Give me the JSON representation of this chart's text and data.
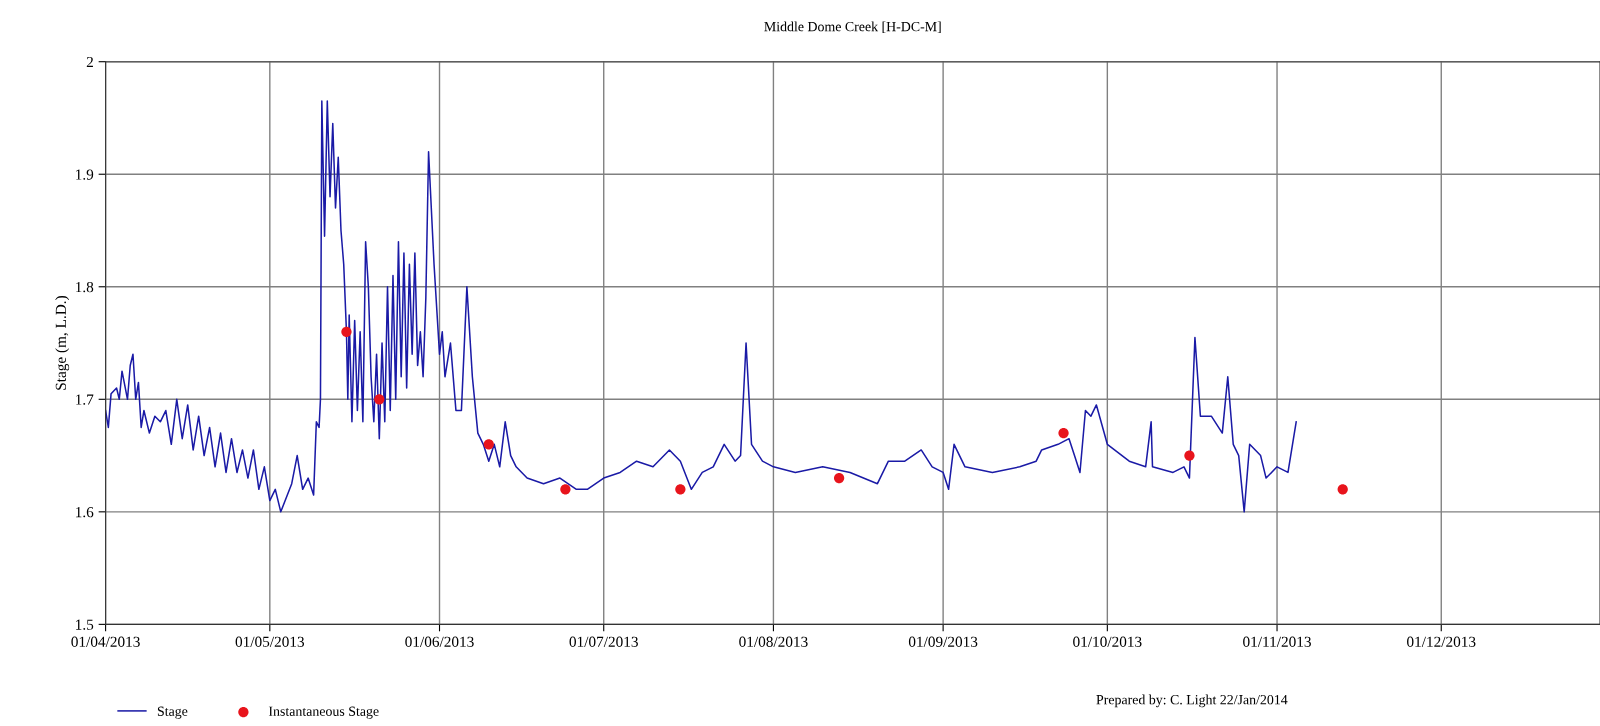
{
  "chart_data": {
    "type": "line",
    "title": "Middle Dome Creek [H-DC-M]",
    "ylabel": "Stage (m, L.D.)",
    "xlim": [
      "2013-04-01",
      "2013-12-30"
    ],
    "xticks": [
      {
        "value": "2013-04-01",
        "label": "01/04/2013"
      },
      {
        "value": "2013-05-01",
        "label": "01/05/2013"
      },
      {
        "value": "2013-06-01",
        "label": "01/06/2013"
      },
      {
        "value": "2013-07-01",
        "label": "01/07/2013"
      },
      {
        "value": "2013-08-01",
        "label": "01/08/2013"
      },
      {
        "value": "2013-09-01",
        "label": "01/09/2013"
      },
      {
        "value": "2013-10-01",
        "label": "01/10/2013"
      },
      {
        "value": "2013-11-01",
        "label": "01/11/2013"
      },
      {
        "value": "2013-12-01",
        "label": "01/12/2013"
      }
    ],
    "ylim": [
      1.5,
      2
    ],
    "yticks": [
      1.5,
      1.6,
      1.7,
      1.8,
      1.9,
      2
    ],
    "grid": true,
    "legend": "bottom left",
    "annotations": [
      "Prepared by: C. Light 22/Jan/2014"
    ],
    "series": [
      {
        "name": "Stage",
        "color": "#1a1aa6",
        "marker": "none",
        "line_style": "solid",
        "x": [
          "2013-04-01",
          "2013-04-01T12:00",
          "2013-04-02",
          "2013-04-03",
          "2013-04-03T12:00",
          "2013-04-04",
          "2013-04-05",
          "2013-04-05T12:00",
          "2013-04-06",
          "2013-04-06T12:00",
          "2013-04-07",
          "2013-04-07T12:00",
          "2013-04-08",
          "2013-04-09",
          "2013-04-10",
          "2013-04-11",
          "2013-04-12",
          "2013-04-13",
          "2013-04-14",
          "2013-04-15",
          "2013-04-16",
          "2013-04-17",
          "2013-04-18",
          "2013-04-19",
          "2013-04-20",
          "2013-04-21",
          "2013-04-22",
          "2013-04-23",
          "2013-04-24",
          "2013-04-25",
          "2013-04-26",
          "2013-04-27",
          "2013-04-28",
          "2013-04-29",
          "2013-04-30",
          "2013-05-01",
          "2013-05-02",
          "2013-05-03",
          "2013-05-05",
          "2013-05-06",
          "2013-05-07",
          "2013-05-08",
          "2013-05-09",
          "2013-05-09T12:00",
          "2013-05-10",
          "2013-05-10T06:00",
          "2013-05-10T12:00",
          "2013-05-11",
          "2013-05-11T12:00",
          "2013-05-12",
          "2013-05-12T12:00",
          "2013-05-13",
          "2013-05-13T12:00",
          "2013-05-14",
          "2013-05-14T12:00",
          "2013-05-15",
          "2013-05-15T06:00",
          "2013-05-15T12:00",
          "2013-05-16",
          "2013-05-16T12:00",
          "2013-05-17",
          "2013-05-17T12:00",
          "2013-05-18",
          "2013-05-18T12:00",
          "2013-05-19",
          "2013-05-19T12:00",
          "2013-05-20",
          "2013-05-20T12:00",
          "2013-05-21",
          "2013-05-21T12:00",
          "2013-05-22",
          "2013-05-22T12:00",
          "2013-05-23",
          "2013-05-23T12:00",
          "2013-05-24",
          "2013-05-24T12:00",
          "2013-05-25",
          "2013-05-25T12:00",
          "2013-05-26",
          "2013-05-26T12:00",
          "2013-05-27",
          "2013-05-27T12:00",
          "2013-05-28",
          "2013-05-28T12:00",
          "2013-05-29",
          "2013-05-29T12:00",
          "2013-05-30",
          "2013-05-31",
          "2013-06-01",
          "2013-06-01T12:00",
          "2013-06-02",
          "2013-06-03",
          "2013-06-04",
          "2013-06-05",
          "2013-06-06",
          "2013-06-07",
          "2013-06-08",
          "2013-06-09",
          "2013-06-10",
          "2013-06-11",
          "2013-06-12",
          "2013-06-13",
          "2013-06-14",
          "2013-06-15",
          "2013-06-17",
          "2013-06-20",
          "2013-06-23",
          "2013-06-26",
          "2013-06-28",
          "2013-07-01",
          "2013-07-04",
          "2013-07-07",
          "2013-07-10",
          "2013-07-13",
          "2013-07-15",
          "2013-07-17",
          "2013-07-19",
          "2013-07-21",
          "2013-07-23",
          "2013-07-25",
          "2013-07-26",
          "2013-07-27",
          "2013-07-28",
          "2013-07-30",
          "2013-08-01",
          "2013-08-05",
          "2013-08-10",
          "2013-08-15",
          "2013-08-20",
          "2013-08-22",
          "2013-08-25",
          "2013-08-28",
          "2013-08-30",
          "2013-09-01",
          "2013-09-02",
          "2013-09-03",
          "2013-09-05",
          "2013-09-10",
          "2013-09-15",
          "2013-09-18",
          "2013-09-19",
          "2013-09-22",
          "2013-09-24",
          "2013-09-25",
          "2013-09-26",
          "2013-09-27",
          "2013-09-28",
          "2013-09-29",
          "2013-10-01",
          "2013-10-05",
          "2013-10-08",
          "2013-10-09",
          "2013-10-09T06:00",
          "2013-10-13",
          "2013-10-15",
          "2013-10-16",
          "2013-10-17",
          "2013-10-18",
          "2013-10-20",
          "2013-10-22",
          "2013-10-23",
          "2013-10-24",
          "2013-10-25",
          "2013-10-26",
          "2013-10-27",
          "2013-10-29",
          "2013-10-30",
          "2013-11-01",
          "2013-11-03",
          "2013-11-04",
          "2013-11-04T12:00"
        ],
        "values": [
          1.69,
          1.675,
          1.705,
          1.71,
          1.7,
          1.725,
          1.7,
          1.73,
          1.74,
          1.7,
          1.715,
          1.675,
          1.69,
          1.67,
          1.685,
          1.68,
          1.69,
          1.66,
          1.7,
          1.665,
          1.695,
          1.655,
          1.685,
          1.65,
          1.675,
          1.64,
          1.67,
          1.635,
          1.665,
          1.635,
          1.655,
          1.63,
          1.655,
          1.62,
          1.64,
          1.61,
          1.62,
          1.6,
          1.625,
          1.65,
          1.62,
          1.63,
          1.615,
          1.68,
          1.675,
          1.7,
          1.965,
          1.845,
          1.965,
          1.88,
          1.945,
          1.87,
          1.915,
          1.85,
          1.82,
          1.76,
          1.7,
          1.775,
          1.68,
          1.77,
          1.69,
          1.76,
          1.68,
          1.84,
          1.8,
          1.72,
          1.68,
          1.74,
          1.665,
          1.75,
          1.68,
          1.8,
          1.69,
          1.81,
          1.7,
          1.84,
          1.72,
          1.83,
          1.71,
          1.82,
          1.74,
          1.83,
          1.73,
          1.76,
          1.72,
          1.79,
          1.92,
          1.82,
          1.74,
          1.76,
          1.72,
          1.75,
          1.69,
          1.69,
          1.8,
          1.72,
          1.67,
          1.66,
          1.645,
          1.66,
          1.64,
          1.68,
          1.65,
          1.64,
          1.63,
          1.625,
          1.63,
          1.62,
          1.62,
          1.63,
          1.635,
          1.645,
          1.64,
          1.655,
          1.645,
          1.62,
          1.635,
          1.64,
          1.66,
          1.645,
          1.65,
          1.75,
          1.66,
          1.645,
          1.64,
          1.635,
          1.64,
          1.635,
          1.625,
          1.645,
          1.645,
          1.655,
          1.64,
          1.635,
          1.62,
          1.66,
          1.64,
          1.635,
          1.64,
          1.645,
          1.655,
          1.66,
          1.665,
          1.65,
          1.635,
          1.69,
          1.685,
          1.695,
          1.66,
          1.645,
          1.64,
          1.68,
          1.64,
          1.635,
          1.64,
          1.63,
          1.755,
          1.685,
          1.685,
          1.67,
          1.72,
          1.66,
          1.65,
          1.6,
          1.66,
          1.65,
          1.63,
          1.64,
          1.635,
          1.665,
          1.68
        ]
      },
      {
        "name": "Instantaneous Stage",
        "type": "scatter",
        "color": "#e8141c",
        "marker": "circle",
        "x": [
          "2013-05-15",
          "2013-05-21",
          "2013-06-10",
          "2013-06-24",
          "2013-07-15",
          "2013-08-13",
          "2013-09-23",
          "2013-10-16",
          "2013-11-13"
        ],
        "values": [
          1.76,
          1.7,
          1.66,
          1.62,
          1.62,
          1.63,
          1.67,
          1.65,
          1.62
        ]
      }
    ]
  }
}
